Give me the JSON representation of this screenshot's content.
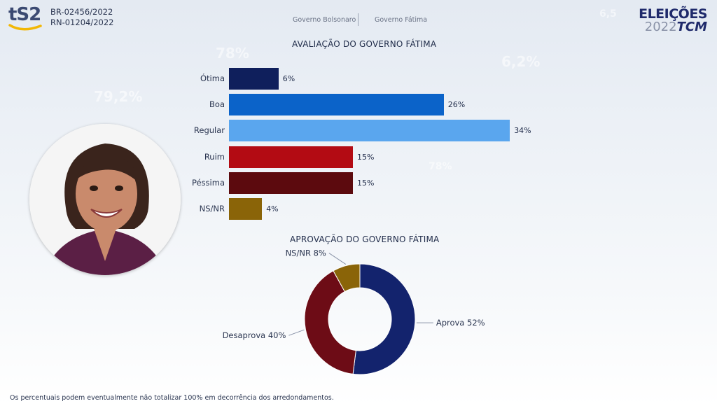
{
  "header": {
    "logo_text": "tS2",
    "registration_br": "BR-02456/2022",
    "registration_rn": "RN-01204/2022",
    "nav": [
      "Governo Bolsonaro",
      "Governo Fátima"
    ],
    "brand_line1": "ELEIÇÕES",
    "brand_year": "2022",
    "brand_tcm": "TCM"
  },
  "background_numbers": [
    "78%",
    "79,2%",
    "6,2%",
    "78%",
    "6,5"
  ],
  "colors": {
    "otima": "#0f1f5c",
    "boa": "#0b63c9",
    "regular": "#5aa6ee",
    "ruim": "#b30b13",
    "pessima": "#5c0a0e",
    "nsnr": "#8a6408",
    "aprova": "#13236d",
    "desaprova": "#6d0c16",
    "pie_nsnr": "#8a6408"
  },
  "chart_data": [
    {
      "type": "bar",
      "title": "AVALIAÇÃO DO GOVERNO FÁTIMA",
      "categories": [
        "Ótima",
        "Boa",
        "Regular",
        "Ruim",
        "Péssima",
        "NS/NR"
      ],
      "values": [
        6,
        26,
        34,
        15,
        15,
        4
      ],
      "value_labels": [
        "6%",
        "26%",
        "34%",
        "15%",
        "15%",
        "4%"
      ],
      "orientation": "horizontal",
      "grid": false
    },
    {
      "type": "pie",
      "style": "donut",
      "title": "APROVAÇÃO DO GOVERNO FÁTIMA",
      "categories": [
        "Aprova",
        "Desaprova",
        "NS/NR"
      ],
      "values": [
        52,
        40,
        8
      ],
      "labels": [
        "Aprova 52%",
        "Desaprova 40%",
        "NS/NR 8%"
      ]
    }
  ],
  "footnote": "Os percentuais podem eventualmente não totalizar 100% em decorrência dos arredondamentos."
}
